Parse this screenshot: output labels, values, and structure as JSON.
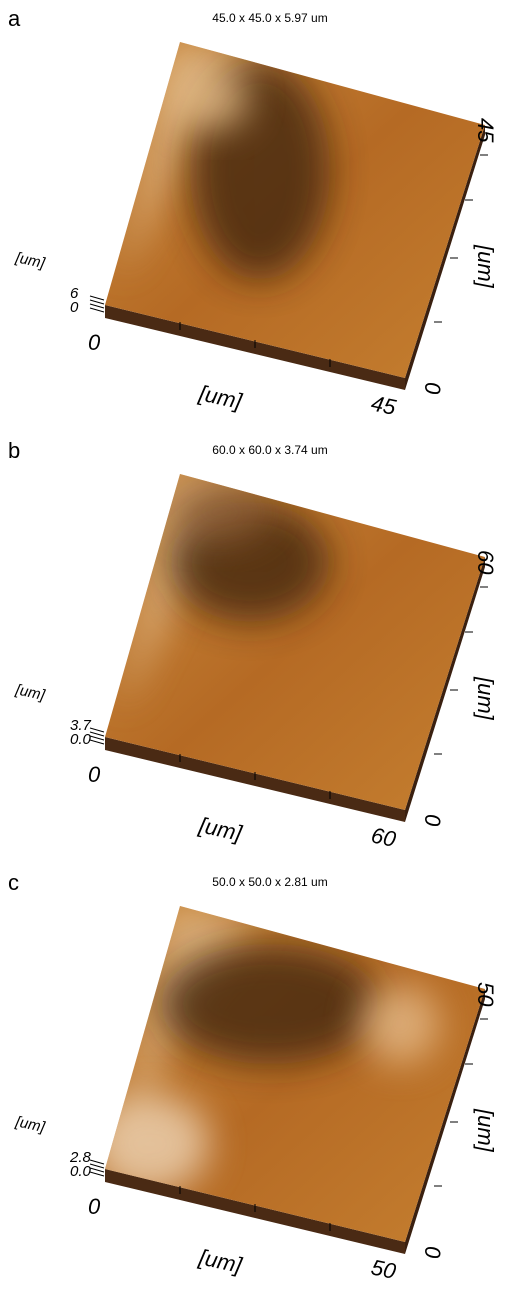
{
  "panels": [
    {
      "label": "a",
      "title": "45.0 x 45.0 x 5.97 um",
      "z_label": "[um]",
      "z_ticks": [
        "6",
        "0"
      ],
      "x_label": "[um]",
      "x_ticks": [
        "0",
        "45"
      ],
      "y_label": "[um]",
      "y_ticks": [
        "0",
        "45"
      ]
    },
    {
      "label": "b",
      "title": "60.0 x 60.0 x 3.74 um",
      "z_label": "[um]",
      "z_ticks": [
        "3.7",
        "0.0"
      ],
      "x_label": "[um]",
      "x_ticks": [
        "0",
        "60"
      ],
      "y_label": "[um]",
      "y_ticks": [
        "0",
        "60"
      ]
    },
    {
      "label": "c",
      "title": "50.0 x 50.0 x 2.81 um",
      "z_label": "[um]",
      "z_ticks": [
        "2.8",
        "0.0"
      ],
      "x_label": "[um]",
      "x_ticks": [
        "0",
        "50"
      ],
      "y_label": "[um]",
      "y_ticks": [
        "0",
        "50"
      ]
    }
  ]
}
